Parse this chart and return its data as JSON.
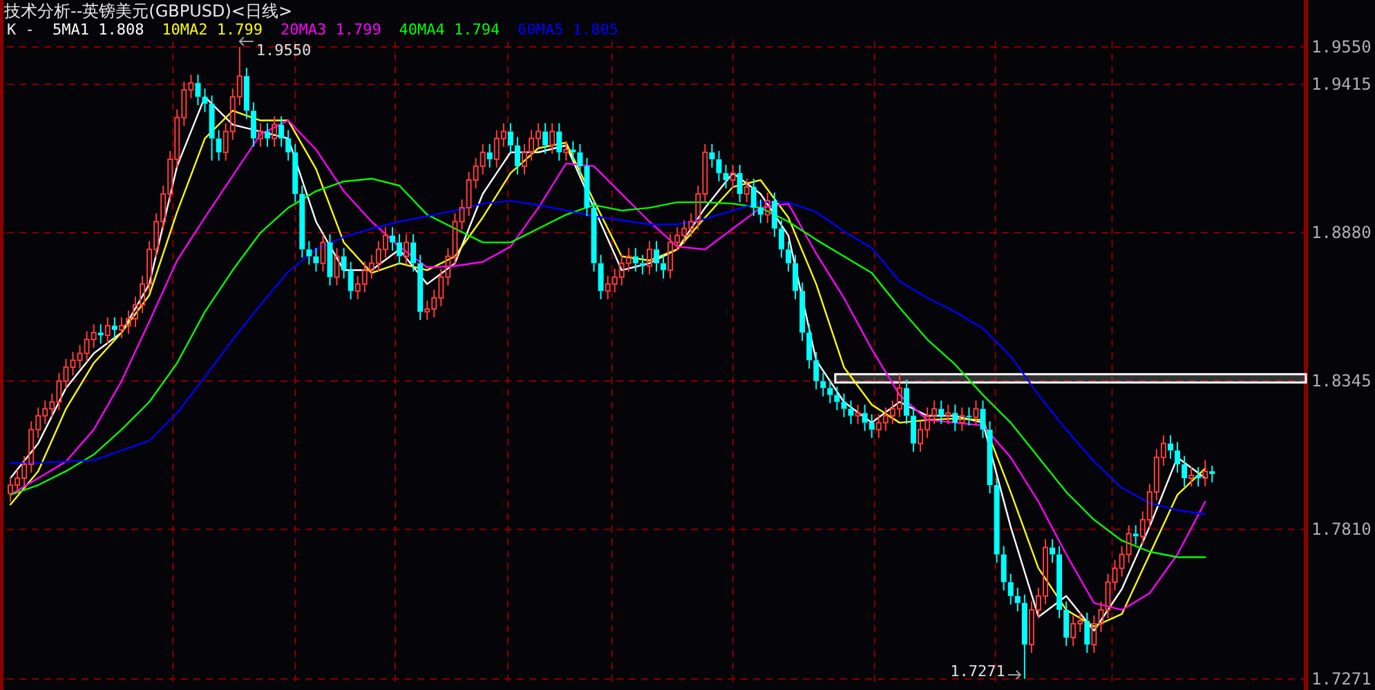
{
  "chart_data": {
    "type": "candlestick",
    "title": "技术分析--英镑美元(GBPUSD)<日线>",
    "legend_title": "K -",
    "legend": "top left",
    "grid": "y",
    "categories": [
      null,
      null,
      null,
      null,
      null,
      null,
      null,
      null,
      null,
      null,
      null,
      null,
      null,
      null,
      null,
      null,
      null,
      null,
      null,
      null,
      null,
      null,
      null,
      null,
      null,
      null,
      null,
      null,
      null,
      null,
      null,
      null,
      null,
      null,
      null,
      null,
      null,
      null,
      null,
      null,
      null,
      null,
      null,
      null,
      null,
      null,
      null,
      null,
      null,
      null,
      null,
      null,
      null,
      null,
      null,
      null,
      null,
      null,
      null,
      null,
      null,
      null,
      null,
      null,
      null,
      null,
      null,
      null,
      null,
      null,
      null,
      null,
      null,
      null,
      null,
      null,
      null,
      null,
      null,
      null,
      null,
      null,
      null,
      null,
      null,
      null,
      null,
      null,
      null,
      null,
      null,
      null,
      null,
      null,
      null,
      null,
      null,
      null,
      null,
      null,
      null,
      null,
      null,
      null,
      null,
      null,
      null,
      null,
      null,
      null,
      null,
      null,
      null,
      null,
      null,
      null,
      null,
      null,
      null,
      null,
      null,
      null,
      null,
      null,
      null,
      null,
      null,
      null,
      null,
      null,
      null,
      null,
      null,
      null,
      null,
      null,
      null,
      null,
      null,
      null,
      null,
      null,
      null,
      null,
      null,
      null,
      null,
      null,
      null,
      null,
      null,
      null,
      null,
      null,
      null,
      null,
      null,
      null,
      null,
      null,
      null,
      null,
      null,
      null,
      null,
      null,
      null,
      null,
      null,
      null,
      null,
      null,
      null,
      null,
      null,
      null,
      null,
      null,
      null,
      null,
      null,
      null,
      null,
      null,
      null,
      null,
      null
    ],
    "ohlc": [
      [
        1.794,
        1.8,
        1.791,
        1.797
      ],
      [
        1.797,
        1.8025,
        1.794,
        1.7995
      ],
      [
        1.7995,
        1.8075,
        1.7965,
        1.8045
      ],
      [
        1.8045,
        1.82,
        1.8015,
        1.817
      ],
      [
        1.817,
        1.825,
        1.814,
        1.822
      ],
      [
        1.822,
        1.8275,
        1.819,
        1.8245
      ],
      [
        1.8245,
        1.83,
        1.8215,
        1.827
      ],
      [
        1.827,
        1.8375,
        1.824,
        1.8345
      ],
      [
        1.8345,
        1.8425,
        1.8315,
        1.8395
      ],
      [
        1.8395,
        1.845,
        1.8365,
        1.842
      ],
      [
        1.842,
        1.8475,
        1.839,
        1.8445
      ],
      [
        1.8445,
        1.8525,
        1.8415,
        1.8495
      ],
      [
        1.8495,
        1.855,
        1.8465,
        1.852
      ],
      [
        1.852,
        1.855,
        1.848,
        1.851
      ],
      [
        1.851,
        1.8575,
        1.848,
        1.8545
      ],
      [
        1.8545,
        1.8575,
        1.85,
        1.853
      ],
      [
        1.853,
        1.8575,
        1.85,
        1.8545
      ],
      [
        1.8545,
        1.86,
        1.8515,
        1.857
      ],
      [
        1.857,
        1.865,
        1.854,
        1.862
      ],
      [
        1.862,
        1.8725,
        1.859,
        1.8695
      ],
      [
        1.8695,
        1.885,
        1.8665,
        1.882
      ],
      [
        1.882,
        1.895,
        1.879,
        1.892
      ],
      [
        1.892,
        1.905,
        1.889,
        1.902
      ],
      [
        1.902,
        1.9175,
        1.899,
        1.9145
      ],
      [
        1.9145,
        1.9325,
        1.9115,
        1.9295
      ],
      [
        1.9295,
        1.9425,
        1.9265,
        1.9395
      ],
      [
        1.9395,
        1.945,
        1.9365,
        1.942
      ],
      [
        1.942,
        1.945,
        1.934,
        1.937
      ],
      [
        1.937,
        1.94,
        1.9315,
        1.9345
      ],
      [
        1.9345,
        1.9375,
        1.914,
        1.922
      ],
      [
        1.922,
        1.925,
        1.914,
        1.917
      ],
      [
        1.917,
        1.9275,
        1.914,
        1.9245
      ],
      [
        1.9245,
        1.94,
        1.9215,
        1.937
      ],
      [
        1.937,
        1.955,
        1.934,
        1.9445
      ],
      [
        1.9445,
        1.9475,
        1.929,
        1.932
      ],
      [
        1.932,
        1.935,
        1.919,
        1.922
      ],
      [
        1.922,
        1.9275,
        1.919,
        1.9245
      ],
      [
        1.9245,
        1.9275,
        1.919,
        1.922
      ],
      [
        1.922,
        1.93,
        1.919,
        1.927
      ],
      [
        1.927,
        1.93,
        1.919,
        1.922
      ],
      [
        1.922,
        1.925,
        1.914,
        1.917
      ],
      [
        1.917,
        1.92,
        1.899,
        1.902
      ],
      [
        1.902,
        1.905,
        1.879,
        1.882
      ],
      [
        1.882,
        1.885,
        1.8765,
        1.8795
      ],
      [
        1.8795,
        1.8825,
        1.874,
        1.877
      ],
      [
        1.877,
        1.8875,
        1.874,
        1.8845
      ],
      [
        1.8845,
        1.8875,
        1.869,
        1.872
      ],
      [
        1.872,
        1.8825,
        1.869,
        1.8795
      ],
      [
        1.8795,
        1.8825,
        1.8715,
        1.8745
      ],
      [
        1.8745,
        1.8775,
        1.864,
        1.867
      ],
      [
        1.867,
        1.8725,
        1.864,
        1.8695
      ],
      [
        1.8695,
        1.8775,
        1.8665,
        1.8745
      ],
      [
        1.8745,
        1.88,
        1.8715,
        1.877
      ],
      [
        1.877,
        1.885,
        1.874,
        1.882
      ],
      [
        1.882,
        1.89,
        1.879,
        1.887
      ],
      [
        1.887,
        1.89,
        1.8815,
        1.8845
      ],
      [
        1.8845,
        1.8875,
        1.8765,
        1.8795
      ],
      [
        1.8795,
        1.8875,
        1.8765,
        1.8845
      ],
      [
        1.8845,
        1.8875,
        1.874,
        1.877
      ],
      [
        1.877,
        1.88,
        1.8565,
        1.8595
      ],
      [
        1.8595,
        1.8635,
        1.8565,
        1.8605
      ],
      [
        1.8605,
        1.8675,
        1.8575,
        1.8645
      ],
      [
        1.8645,
        1.875,
        1.8615,
        1.872
      ],
      [
        1.872,
        1.8825,
        1.869,
        1.8795
      ],
      [
        1.8795,
        1.895,
        1.8765,
        1.892
      ],
      [
        1.892,
        1.9,
        1.889,
        1.897
      ],
      [
        1.897,
        1.91,
        1.894,
        1.907
      ],
      [
        1.907,
        1.915,
        1.904,
        1.912
      ],
      [
        1.912,
        1.92,
        1.909,
        1.917
      ],
      [
        1.917,
        1.92,
        1.9115,
        1.9145
      ],
      [
        1.9145,
        1.925,
        1.9115,
        1.922
      ],
      [
        1.922,
        1.9275,
        1.919,
        1.9245
      ],
      [
        1.9245,
        1.9275,
        1.9165,
        1.9195
      ],
      [
        1.9195,
        1.9225,
        1.909,
        1.912
      ],
      [
        1.912,
        1.92,
        1.909,
        1.917
      ],
      [
        1.917,
        1.925,
        1.914,
        1.922
      ],
      [
        1.922,
        1.9275,
        1.919,
        1.9245
      ],
      [
        1.9245,
        1.9275,
        1.9165,
        1.9195
      ],
      [
        1.9195,
        1.9275,
        1.9165,
        1.9245
      ],
      [
        1.9245,
        1.9275,
        1.914,
        1.917
      ],
      [
        1.917,
        1.921,
        1.914,
        1.918
      ],
      [
        1.918,
        1.921,
        1.914,
        1.917
      ],
      [
        1.917,
        1.92,
        1.909,
        1.912
      ],
      [
        1.912,
        1.915,
        1.894,
        1.897
      ],
      [
        1.897,
        1.9,
        1.874,
        1.877
      ],
      [
        1.877,
        1.88,
        1.864,
        1.867
      ],
      [
        1.867,
        1.8725,
        1.864,
        1.8695
      ],
      [
        1.8695,
        1.875,
        1.8665,
        1.872
      ],
      [
        1.872,
        1.88,
        1.869,
        1.877
      ],
      [
        1.877,
        1.8825,
        1.874,
        1.8795
      ],
      [
        1.8795,
        1.8825,
        1.874,
        1.877
      ],
      [
        1.877,
        1.88,
        1.873,
        1.876
      ],
      [
        1.876,
        1.885,
        1.873,
        1.882
      ],
      [
        1.882,
        1.885,
        1.874,
        1.877
      ],
      [
        1.877,
        1.88,
        1.8715,
        1.8745
      ],
      [
        1.8745,
        1.8875,
        1.8715,
        1.8845
      ],
      [
        1.8845,
        1.89,
        1.8815,
        1.887
      ],
      [
        1.887,
        1.8925,
        1.884,
        1.8895
      ],
      [
        1.8895,
        1.895,
        1.8865,
        1.892
      ],
      [
        1.892,
        1.905,
        1.889,
        1.902
      ],
      [
        1.902,
        1.92,
        1.899,
        1.917
      ],
      [
        1.917,
        1.92,
        1.9115,
        1.9145
      ],
      [
        1.9145,
        1.9175,
        1.9065,
        1.9095
      ],
      [
        1.9095,
        1.9125,
        1.904,
        1.907
      ],
      [
        1.907,
        1.9125,
        1.904,
        1.9095
      ],
      [
        1.9095,
        1.9125,
        1.899,
        1.902
      ],
      [
        1.902,
        1.9075,
        1.899,
        1.9045
      ],
      [
        1.9045,
        1.9075,
        1.894,
        1.897
      ],
      [
        1.897,
        1.9,
        1.8915,
        1.8945
      ],
      [
        1.8945,
        1.9025,
        1.8915,
        1.8995
      ],
      [
        1.8995,
        1.9025,
        1.8865,
        1.8895
      ],
      [
        1.8895,
        1.8925,
        1.879,
        1.882
      ],
      [
        1.882,
        1.885,
        1.874,
        1.877
      ],
      [
        1.877,
        1.88,
        1.864,
        1.867
      ],
      [
        1.867,
        1.87,
        1.849,
        1.852
      ],
      [
        1.852,
        1.855,
        1.839,
        1.842
      ],
      [
        1.842,
        1.845,
        1.8315,
        1.8345
      ],
      [
        1.8345,
        1.8375,
        1.829,
        1.832
      ],
      [
        1.832,
        1.835,
        1.8265,
        1.8295
      ],
      [
        1.8295,
        1.8325,
        1.824,
        1.827
      ],
      [
        1.827,
        1.83,
        1.8215,
        1.8245
      ],
      [
        1.8245,
        1.8275,
        1.819,
        1.822
      ],
      [
        1.822,
        1.826,
        1.819,
        1.823
      ],
      [
        1.823,
        1.826,
        1.8165,
        1.8195
      ],
      [
        1.8195,
        1.8225,
        1.814,
        1.817
      ],
      [
        1.817,
        1.8225,
        1.814,
        1.8195
      ],
      [
        1.8195,
        1.825,
        1.8165,
        1.822
      ],
      [
        1.822,
        1.8275,
        1.819,
        1.8245
      ],
      [
        1.8245,
        1.837,
        1.8215,
        1.832
      ],
      [
        1.832,
        1.835,
        1.819,
        1.822
      ],
      [
        1.822,
        1.825,
        1.809,
        1.812
      ],
      [
        1.812,
        1.82,
        1.809,
        1.817
      ],
      [
        1.817,
        1.825,
        1.814,
        1.822
      ],
      [
        1.822,
        1.8275,
        1.819,
        1.8245
      ],
      [
        1.8245,
        1.8275,
        1.819,
        1.822
      ],
      [
        1.822,
        1.826,
        1.819,
        1.823
      ],
      [
        1.823,
        1.826,
        1.8165,
        1.8195
      ],
      [
        1.8195,
        1.825,
        1.8165,
        1.822
      ],
      [
        1.822,
        1.825,
        1.8185,
        1.8215
      ],
      [
        1.8215,
        1.8275,
        1.8185,
        1.8245
      ],
      [
        1.8245,
        1.8275,
        1.814,
        1.817
      ],
      [
        1.817,
        1.82,
        1.794,
        1.797
      ],
      [
        1.797,
        1.8,
        1.769,
        1.772
      ],
      [
        1.772,
        1.775,
        1.759,
        1.762
      ],
      [
        1.762,
        1.765,
        1.754,
        1.757
      ],
      [
        1.757,
        1.76,
        1.7515,
        1.7545
      ],
      [
        1.7545,
        1.7575,
        1.7271,
        1.7395
      ],
      [
        1.7395,
        1.755,
        1.7365,
        1.752
      ],
      [
        1.752,
        1.76,
        1.749,
        1.757
      ],
      [
        1.757,
        1.7775,
        1.754,
        1.7745
      ],
      [
        1.7745,
        1.7775,
        1.769,
        1.772
      ],
      [
        1.772,
        1.775,
        1.749,
        1.752
      ],
      [
        1.752,
        1.755,
        1.739,
        1.742
      ],
      [
        1.742,
        1.75,
        1.739,
        1.747
      ],
      [
        1.747,
        1.751,
        1.744,
        1.748
      ],
      [
        1.748,
        1.751,
        1.7365,
        1.7395
      ],
      [
        1.7395,
        1.75,
        1.7365,
        1.747
      ],
      [
        1.747,
        1.755,
        1.744,
        1.752
      ],
      [
        1.752,
        1.765,
        1.749,
        1.762
      ],
      [
        1.762,
        1.77,
        1.759,
        1.767
      ],
      [
        1.767,
        1.775,
        1.764,
        1.772
      ],
      [
        1.772,
        1.7825,
        1.769,
        1.7795
      ],
      [
        1.7795,
        1.7825,
        1.7755,
        1.7785
      ],
      [
        1.7785,
        1.7875,
        1.7755,
        1.7845
      ],
      [
        1.7845,
        1.7975,
        1.7815,
        1.7945
      ],
      [
        1.7945,
        1.81,
        1.7915,
        1.807
      ],
      [
        1.807,
        1.815,
        1.804,
        1.812
      ],
      [
        1.812,
        1.815,
        1.8065,
        1.8095
      ],
      [
        1.8095,
        1.8125,
        1.8015,
        1.8045
      ],
      [
        1.8045,
        1.8075,
        1.7965,
        1.7995
      ],
      [
        1.7995,
        1.8035,
        1.7965,
        1.8005
      ],
      [
        1.8005,
        1.8035,
        1.7965,
        1.7995
      ],
      [
        1.7995,
        1.806,
        1.7965,
        1.802
      ],
      [
        1.802,
        1.804,
        1.798,
        1.801
      ],
      null,
      null,
      null,
      null,
      null,
      null,
      null,
      null,
      null,
      null,
      null,
      null,
      null
    ],
    "series": [
      {
        "type": "line",
        "name": "5MA1 1.808",
        "color": "#ffffff",
        "values": [
          1.7995,
          null,
          null,
          null,
          1.812,
          null,
          null,
          null,
          1.832,
          null,
          null,
          null,
          1.8445,
          null,
          null,
          null,
          1.852,
          null,
          null,
          null,
          1.8695,
          null,
          null,
          null,
          1.912,
          null,
          null,
          null,
          1.937,
          null,
          null,
          null,
          1.927,
          null,
          null,
          null,
          1.9245,
          null,
          null,
          null,
          1.922,
          null,
          null,
          null,
          1.892,
          null,
          null,
          null,
          1.8745,
          null,
          null,
          null,
          1.8745,
          null,
          null,
          null,
          1.882,
          null,
          null,
          null,
          1.8695,
          null,
          null,
          null,
          1.877,
          null,
          null,
          null,
          1.902,
          null,
          null,
          null,
          1.917,
          null,
          null,
          null,
          1.917,
          null,
          null,
          null,
          1.9195,
          null,
          null,
          null,
          1.897,
          null,
          null,
          null,
          1.8745,
          null,
          null,
          null,
          1.877,
          null,
          null,
          null,
          1.882,
          null,
          null,
          null,
          1.897,
          null,
          null,
          null,
          1.9095,
          null,
          null,
          null,
          1.902,
          null,
          null,
          null,
          1.887,
          null,
          null,
          null,
          1.842,
          null,
          null,
          null,
          1.827,
          null,
          null,
          null,
          1.8195,
          null,
          null,
          null,
          1.827,
          null,
          null,
          null,
          1.822,
          null,
          null,
          null,
          1.822,
          null,
          null,
          null,
          1.8195,
          null,
          null,
          null,
          1.782,
          null,
          null,
          null,
          1.7495,
          null,
          null,
          null,
          1.757,
          null,
          null,
          null,
          1.7445,
          null,
          null,
          null,
          1.7595,
          null,
          null,
          null,
          1.782,
          null,
          null,
          null,
          1.807,
          null,
          null,
          null,
          1.7995,
          null,
          null,
          null,
          null,
          null,
          null,
          null,
          null,
          null,
          null,
          null,
          null,
          null,
          null
        ]
      },
      {
        "type": "line",
        "name": "10MA2 1.799",
        "color": "#ffff00",
        "values": [
          1.79,
          null,
          null,
          null,
          1.802,
          null,
          null,
          null,
          1.8245,
          null,
          null,
          null,
          1.841,
          null,
          null,
          null,
          1.852,
          null,
          null,
          null,
          1.8655,
          null,
          null,
          null,
          1.8955,
          null,
          null,
          null,
          1.922,
          null,
          null,
          null,
          1.932,
          null,
          null,
          null,
          1.9285,
          null,
          null,
          null,
          1.9285,
          null,
          null,
          null,
          1.911,
          null,
          null,
          null,
          1.8845,
          null,
          null,
          null,
          1.8735,
          null,
          null,
          null,
          1.877,
          null,
          null,
          null,
          1.8745,
          null,
          null,
          null,
          1.8795,
          null,
          null,
          null,
          1.8935,
          null,
          null,
          null,
          1.9095,
          null,
          null,
          null,
          1.9185,
          null,
          null,
          null,
          1.9205,
          null,
          null,
          null,
          1.8995,
          null,
          null,
          null,
          1.8795,
          null,
          null,
          null,
          1.878,
          null,
          null,
          null,
          1.882,
          null,
          null,
          null,
          1.8935,
          null,
          null,
          null,
          1.9045,
          null,
          null,
          null,
          1.907,
          null,
          null,
          null,
          1.8935,
          null,
          null,
          null,
          1.8695,
          null,
          null,
          null,
          1.8395,
          null,
          null,
          null,
          1.826,
          null,
          null,
          null,
          1.8195,
          null,
          null,
          null,
          1.8205,
          null,
          null,
          null,
          1.821,
          null,
          null,
          null,
          1.8205,
          null,
          null,
          null,
          1.7945,
          null,
          null,
          null,
          1.767,
          null,
          null,
          null,
          1.752,
          null,
          null,
          null,
          1.746,
          null,
          null,
          null,
          1.7505,
          null,
          null,
          null,
          1.772,
          null,
          null,
          null,
          1.7935,
          null,
          null,
          null,
          1.803,
          null,
          null,
          null,
          null,
          null,
          null,
          null,
          null,
          null,
          null,
          null,
          null,
          null,
          null
        ]
      },
      {
        "type": "line",
        "name": "20MA3 1.799",
        "color": "#ff00ff",
        "values": [
          1.7935,
          null,
          null,
          null,
          1.7995,
          null,
          null,
          null,
          1.8055,
          null,
          null,
          null,
          1.817,
          null,
          null,
          null,
          1.8345,
          null,
          null,
          null,
          1.856,
          null,
          null,
          null,
          1.878,
          null,
          null,
          null,
          1.8935,
          null,
          null,
          null,
          1.9085,
          null,
          null,
          null,
          1.9235,
          null,
          null,
          null,
          1.9285,
          null,
          null,
          null,
          1.918,
          null,
          null,
          null,
          1.903,
          null,
          null,
          null,
          1.892,
          null,
          null,
          null,
          1.883,
          null,
          null,
          null,
          1.8755,
          null,
          null,
          null,
          1.876,
          null,
          null,
          null,
          1.8775,
          null,
          null,
          null,
          1.883,
          null,
          null,
          null,
          1.897,
          null,
          null,
          null,
          1.913,
          null,
          null,
          null,
          1.912,
          null,
          null,
          null,
          1.902,
          null,
          null,
          null,
          1.892,
          null,
          null,
          null,
          1.883,
          null,
          null,
          null,
          1.882,
          null,
          null,
          null,
          1.8895,
          null,
          null,
          null,
          1.897,
          null,
          null,
          null,
          1.8985,
          null,
          null,
          null,
          1.8805,
          null,
          null,
          null,
          1.8645,
          null,
          null,
          null,
          1.846,
          null,
          null,
          null,
          1.8295,
          null,
          null,
          null,
          1.8205,
          null,
          null,
          null,
          1.8195,
          null,
          null,
          null,
          1.8185,
          null,
          null,
          null,
          1.807,
          null,
          null,
          null,
          1.791,
          null,
          null,
          null,
          1.772,
          null,
          null,
          null,
          1.7545,
          null,
          null,
          null,
          1.752,
          null,
          null,
          null,
          1.758,
          null,
          null,
          null,
          1.772,
          null,
          null,
          null,
          1.791,
          null,
          null,
          null,
          null,
          null,
          null,
          null,
          null,
          null,
          null,
          null,
          null,
          null,
          null
        ]
      },
      {
        "type": "line",
        "name": "40MA4 1.794",
        "color": "#00ff00",
        "values": [
          1.7935,
          null,
          null,
          null,
          1.797,
          null,
          null,
          null,
          1.802,
          null,
          null,
          null,
          1.808,
          null,
          null,
          null,
          1.817,
          null,
          null,
          null,
          1.827,
          null,
          null,
          null,
          1.841,
          null,
          null,
          null,
          1.8595,
          null,
          null,
          null,
          1.8745,
          null,
          null,
          null,
          1.888,
          null,
          null,
          null,
          1.897,
          null,
          null,
          null,
          1.903,
          null,
          null,
          null,
          1.9065,
          null,
          null,
          null,
          1.9075,
          null,
          null,
          null,
          1.905,
          null,
          null,
          null,
          1.8945,
          null,
          null,
          null,
          1.8895,
          null,
          null,
          null,
          1.8845,
          null,
          null,
          null,
          1.8845,
          null,
          null,
          null,
          1.8895,
          null,
          null,
          null,
          1.8945,
          null,
          null,
          null,
          1.898,
          null,
          null,
          null,
          1.896,
          null,
          null,
          null,
          1.897,
          null,
          null,
          null,
          1.899,
          null,
          null,
          null,
          1.899,
          null,
          null,
          null,
          1.8985,
          null,
          null,
          null,
          1.897,
          null,
          null,
          null,
          1.892,
          null,
          null,
          null,
          1.8855,
          null,
          null,
          null,
          1.8795,
          null,
          null,
          null,
          1.8735,
          null,
          null,
          null,
          1.861,
          null,
          null,
          null,
          1.8495,
          null,
          null,
          null,
          1.8405,
          null,
          null,
          null,
          1.8295,
          null,
          null,
          null,
          1.8195,
          null,
          null,
          null,
          1.807,
          null,
          null,
          null,
          1.7945,
          null,
          null,
          null,
          1.7845,
          null,
          null,
          null,
          1.777,
          null,
          null,
          null,
          1.773,
          null,
          null,
          null,
          1.771,
          null,
          null,
          null,
          1.771,
          null,
          null,
          null,
          null,
          null,
          null,
          null,
          null,
          null,
          null,
          null,
          null,
          null,
          null
        ]
      },
      {
        "type": "line",
        "name": "60MA5 1.805",
        "color": "#0000ff",
        "values": [
          1.805,
          null,
          null,
          null,
          1.805,
          null,
          null,
          null,
          1.8055,
          null,
          null,
          null,
          1.806,
          null,
          null,
          null,
          1.8095,
          null,
          null,
          null,
          1.813,
          null,
          null,
          null,
          1.823,
          null,
          null,
          null,
          1.836,
          null,
          null,
          null,
          1.8495,
          null,
          null,
          null,
          1.862,
          null,
          null,
          null,
          1.874,
          null,
          null,
          null,
          1.882,
          null,
          null,
          null,
          1.8865,
          null,
          null,
          null,
          1.8895,
          null,
          null,
          null,
          1.892,
          null,
          null,
          null,
          1.894,
          null,
          null,
          null,
          1.896,
          null,
          null,
          null,
          1.8985,
          null,
          null,
          null,
          1.8995,
          null,
          null,
          null,
          1.898,
          null,
          null,
          null,
          1.896,
          null,
          null,
          null,
          1.894,
          null,
          null,
          null,
          1.8925,
          null,
          null,
          null,
          1.891,
          null,
          null,
          null,
          1.891,
          null,
          null,
          null,
          1.893,
          null,
          null,
          null,
          1.896,
          null,
          null,
          null,
          1.899,
          null,
          null,
          null,
          1.899,
          null,
          null,
          null,
          1.8955,
          null,
          null,
          null,
          1.8885,
          null,
          null,
          null,
          1.8825,
          null,
          null,
          null,
          1.8705,
          null,
          null,
          null,
          1.8645,
          null,
          null,
          null,
          1.8595,
          null,
          null,
          null,
          1.8535,
          null,
          null,
          null,
          1.8435,
          null,
          null,
          null,
          1.8295,
          null,
          null,
          null,
          1.817,
          null,
          null,
          null,
          1.8055,
          null,
          null,
          null,
          1.796,
          null,
          null,
          null,
          1.7905,
          null,
          null,
          null,
          1.788,
          null,
          null,
          null,
          1.7865,
          null,
          null,
          null,
          null,
          null,
          null,
          null,
          null,
          null,
          null,
          null,
          null,
          null,
          null
        ]
      }
    ],
    "ylim": [
      1.7256,
      1.957
    ],
    "yticks": [
      {
        "value": 1.955,
        "label": "1.9550"
      },
      1.9415,
      {
        "value": 1.888,
        "label": "1.8880"
      },
      1.8345,
      {
        "value": 1.781,
        "label": "1.7810"
      },
      1.7271
    ],
    "bands": [
      {
        "axis": "y",
        "from": 1.834,
        "to": 1.837,
        "color": "#ffffff"
      }
    ],
    "annotations": [
      "1.9550",
      "1.7271"
    ]
  }
}
